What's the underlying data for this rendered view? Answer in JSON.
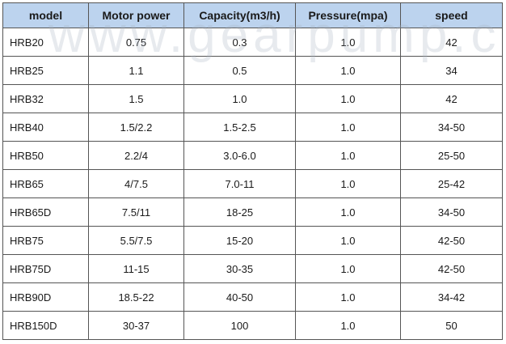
{
  "watermark": "www.gearpump.c",
  "table": {
    "headers": [
      "model",
      "Motor power",
      "Capacity(m3/h)",
      "Pressure(mpa)",
      "speed"
    ],
    "rows": [
      [
        "HRB20",
        "0.75",
        "0.3",
        "1.0",
        "42"
      ],
      [
        "HRB25",
        "1.1",
        "0.5",
        "1.0",
        "34"
      ],
      [
        "HRB32",
        "1.5",
        "1.0",
        "1.0",
        "42"
      ],
      [
        "HRB40",
        "1.5/2.2",
        "1.5-2.5",
        "1.0",
        "34-50"
      ],
      [
        "HRB50",
        "2.2/4",
        "3.0-6.0",
        "1.0",
        "25-50"
      ],
      [
        "HRB65",
        "4/7.5",
        "7.0-11",
        "1.0",
        "25-42"
      ],
      [
        "HRB65D",
        "7.5/11",
        "18-25",
        "1.0",
        "34-50"
      ],
      [
        "HRB75",
        "5.5/7.5",
        "15-20",
        "1.0",
        "42-50"
      ],
      [
        "HRB75D",
        "11-15",
        "30-35",
        "1.0",
        "42-50"
      ],
      [
        "HRB90D",
        "18.5-22",
        "40-50",
        "1.0",
        "34-42"
      ],
      [
        "HRB150D",
        "30-37",
        "100",
        "1.0",
        "50"
      ]
    ]
  },
  "colors": {
    "header_background": "#bcd3ee",
    "border": "#555555",
    "text": "#1a1a1a"
  }
}
